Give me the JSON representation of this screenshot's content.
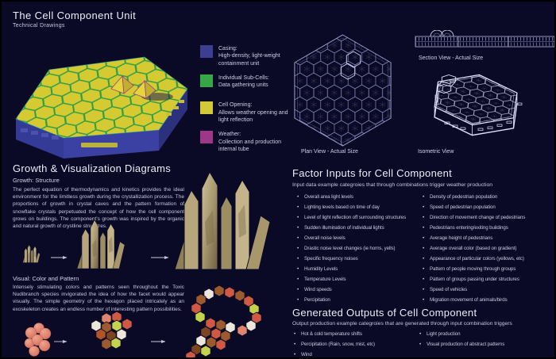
{
  "header": {
    "title": "The Cell Component Unit",
    "subtitle": "Technical Drawings"
  },
  "legend": {
    "items": [
      {
        "name": "casing",
        "color": "#3c3f91",
        "title": "Casing:",
        "desc": "High-density, light-weight containment unit"
      },
      {
        "name": "sub-cells",
        "color": "#36a647",
        "title": "Individual Sub-Cells:",
        "desc": "Data gathering units"
      },
      {
        "name": "cell-opening",
        "color": "#d2c838",
        "title": "Cell Opening:",
        "desc": "Allows weather opening and light reflection"
      },
      {
        "name": "weather",
        "color": "#9e3787",
        "title": "Weather:",
        "desc": "Collection and production internal tube"
      }
    ]
  },
  "views": {
    "plan_label": "Plan View - Actual Size",
    "isometric_label": "Isometric View",
    "section_label": "Section View - Actual Size"
  },
  "growth": {
    "heading": "Growth & Visualization Diagrams",
    "subheading": "Growth: Structure",
    "body": "The perfect equation of thermodynamics and kinetics provides the ideal environment for the limitless growth during the crystallization process. The proportions of growth in crystal caves and the pattern formation of snowflake crystals perpetuated the concept of how the cell component grows on buildings. The component's growth was inspired by the organic and natural growth of crystline strucutres.",
    "visual_heading": "Visual: Color and Pattern",
    "visual_body": "Intensely stimulating colors and patterns seen throughout the Toxic Nudibranch species invigorated the idea of how the facet would appear visually. The simple geometry of the hexagon placed intricately as an exoskeleton creates an endless number of interesting pattern possibilities."
  },
  "factor_inputs": {
    "heading": "Factor Inputs for Cell Component",
    "subtitle": "Input data example categroies that through combinations trigger weather production",
    "column1": [
      "Overall area light levels",
      "Lighting levels based on time of day",
      "Level of light reflection off surrounding structures",
      "Sudden illumination of individual lights",
      "Overall noise levels",
      "Drastic noise level changes (ie horns, yells)",
      "Specific frequency noises",
      "Humidity Levels",
      "Temperature Levels",
      "Wind speeds",
      "Percipitation"
    ],
    "column2": [
      "Density of pedestrian population",
      "Speed of pedestrian population",
      "Direction of movement change of pedestrians",
      "Pedestrians entering/exiting buildings",
      "Average height of pedestrians",
      "Average overall color (based on gradient)",
      "Appearance of particular colors (yellows, etc)",
      "Pattern of people moving through groups",
      "Pattern of groups passing under structures",
      "Speed of vehicles",
      "Migration movement of animals/birds"
    ]
  },
  "outputs": {
    "heading": "Generated Outputs of Cell Component",
    "subtitle": "Output production example categroies that are generated through input combination triggers",
    "column1": [
      "Hot & cold temperature shifts",
      "Percipitation (Rain, snow, mist, etc)",
      "Wind"
    ],
    "column2": [
      "Light production",
      "Visual production of abstract patterns"
    ]
  },
  "colors": {
    "background": "#0a0a27",
    "text": "#d7d7e9",
    "wireframe": "#8487b8",
    "wireframe_bright": "#dde0f8",
    "casing_blue": "#3c3f91",
    "subcell_green": "#36a647",
    "opening_yellow": "#d2c838",
    "weather_magenta": "#9e3787",
    "crystal_tan": "#b5a67c",
    "hex_red": "#cf5942",
    "hex_salmon": "#e2836e",
    "hex_brown": "#9c5a2e",
    "hex_green": "#c5d24c",
    "hex_white": "#ece7da"
  }
}
